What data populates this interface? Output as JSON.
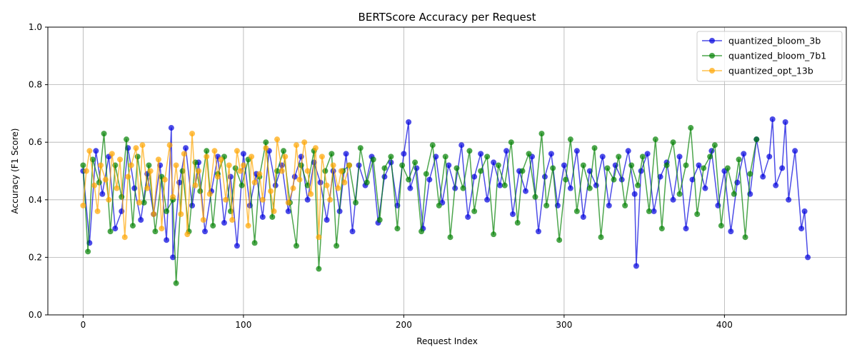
{
  "chart_data": {
    "type": "line",
    "title": "BERTScore Accuracy per Request",
    "xlabel": "Request Index",
    "ylabel": "Accuracy (F1 Score)",
    "xlim": [
      -22,
      476
    ],
    "ylim": [
      0.0,
      1.0
    ],
    "xticks": [
      0,
      100,
      200,
      300,
      400
    ],
    "yticks": [
      0.0,
      0.2,
      0.4,
      0.6,
      0.8,
      1.0
    ],
    "xtick_labels": [
      "0",
      "100",
      "200",
      "300",
      "400"
    ],
    "ytick_labels": [
      "0.0",
      "0.2",
      "0.4",
      "0.6",
      "0.8",
      "1.0"
    ],
    "grid": true,
    "legend_position": "top-right",
    "series": [
      {
        "name": "quantized_bloom_3b",
        "color": "#0000dd",
        "alpha": 0.7,
        "x": [
          0,
          4,
          8,
          12,
          16,
          20,
          24,
          28,
          32,
          36,
          40,
          44,
          48,
          52,
          55,
          56,
          60,
          64,
          68,
          72,
          76,
          80,
          84,
          88,
          92,
          96,
          100,
          104,
          108,
          112,
          116,
          120,
          124,
          128,
          132,
          136,
          140,
          144,
          148,
          152,
          156,
          160,
          164,
          168,
          172,
          176,
          180,
          184,
          188,
          192,
          196,
          200,
          203,
          204,
          208,
          212,
          216,
          220,
          224,
          228,
          232,
          236,
          240,
          244,
          248,
          252,
          256,
          260,
          264,
          268,
          272,
          276,
          280,
          284,
          288,
          292,
          296,
          300,
          304,
          308,
          312,
          316,
          320,
          324,
          328,
          332,
          336,
          340,
          344,
          345,
          348,
          352,
          356,
          360,
          364,
          368,
          372,
          376,
          380,
          384,
          388,
          392,
          396,
          400,
          404,
          408,
          412,
          416,
          420,
          424,
          428,
          430,
          432,
          436,
          438,
          440,
          444,
          448,
          450,
          452
        ],
        "y": [
          0.5,
          0.25,
          0.57,
          0.42,
          0.55,
          0.3,
          0.36,
          0.58,
          0.44,
          0.33,
          0.49,
          0.35,
          0.52,
          0.26,
          0.65,
          0.2,
          0.46,
          0.58,
          0.38,
          0.53,
          0.29,
          0.43,
          0.55,
          0.32,
          0.48,
          0.24,
          0.56,
          0.38,
          0.49,
          0.34,
          0.57,
          0.45,
          0.52,
          0.36,
          0.48,
          0.55,
          0.4,
          0.53,
          0.46,
          0.33,
          0.5,
          0.36,
          0.56,
          0.29,
          0.52,
          0.45,
          0.55,
          0.32,
          0.48,
          0.53,
          0.38,
          0.56,
          0.67,
          0.44,
          0.51,
          0.3,
          0.47,
          0.55,
          0.39,
          0.52,
          0.44,
          0.59,
          0.34,
          0.48,
          0.56,
          0.4,
          0.53,
          0.45,
          0.57,
          0.35,
          0.5,
          0.43,
          0.55,
          0.29,
          0.48,
          0.56,
          0.38,
          0.52,
          0.44,
          0.57,
          0.34,
          0.5,
          0.45,
          0.55,
          0.38,
          0.52,
          0.47,
          0.57,
          0.42,
          0.17,
          0.5,
          0.56,
          0.36,
          0.48,
          0.53,
          0.4,
          0.55,
          0.3,
          0.47,
          0.52,
          0.44,
          0.57,
          0.38,
          0.5,
          0.29,
          0.46,
          0.56,
          0.42,
          0.61,
          0.48,
          0.55,
          0.68,
          0.45,
          0.51,
          0.67,
          0.4,
          0.57,
          0.3,
          0.36,
          0.2
        ]
      },
      {
        "name": "quantized_bloom_7b1",
        "color": "#008000",
        "alpha": 0.7,
        "x": [
          0,
          3,
          6,
          10,
          13,
          17,
          20,
          24,
          27,
          31,
          34,
          38,
          41,
          45,
          49,
          52,
          56,
          58,
          62,
          66,
          70,
          73,
          77,
          81,
          84,
          88,
          92,
          95,
          99,
          103,
          107,
          110,
          114,
          118,
          121,
          125,
          129,
          133,
          136,
          140,
          144,
          147,
          151,
          155,
          158,
          162,
          166,
          170,
          173,
          177,
          181,
          185,
          188,
          192,
          196,
          199,
          203,
          207,
          211,
          214,
          218,
          222,
          226,
          229,
          233,
          237,
          241,
          244,
          248,
          252,
          256,
          259,
          263,
          267,
          271,
          274,
          278,
          282,
          286,
          289,
          293,
          297,
          301,
          304,
          308,
          312,
          316,
          319,
          323,
          327,
          331,
          334,
          338,
          342,
          346,
          349,
          353,
          357,
          361,
          364,
          368,
          372,
          376,
          379,
          383,
          387,
          391,
          394,
          398,
          402,
          406,
          409,
          413,
          416,
          420
        ],
        "y": [
          0.52,
          0.22,
          0.54,
          0.46,
          0.63,
          0.29,
          0.52,
          0.41,
          0.61,
          0.31,
          0.55,
          0.39,
          0.52,
          0.29,
          0.48,
          0.36,
          0.4,
          0.11,
          0.5,
          0.29,
          0.53,
          0.43,
          0.57,
          0.31,
          0.49,
          0.55,
          0.36,
          0.51,
          0.45,
          0.54,
          0.25,
          0.48,
          0.6,
          0.34,
          0.5,
          0.57,
          0.39,
          0.24,
          0.52,
          0.45,
          0.57,
          0.16,
          0.5,
          0.56,
          0.24,
          0.5,
          0.52,
          0.39,
          0.58,
          0.46,
          0.54,
          0.33,
          0.51,
          0.55,
          0.3,
          0.52,
          0.47,
          0.53,
          0.29,
          0.49,
          0.59,
          0.38,
          0.55,
          0.27,
          0.51,
          0.44,
          0.57,
          0.36,
          0.5,
          0.55,
          0.28,
          0.52,
          0.45,
          0.6,
          0.32,
          0.5,
          0.56,
          0.41,
          0.63,
          0.38,
          0.51,
          0.26,
          0.47,
          0.61,
          0.36,
          0.52,
          0.44,
          0.58,
          0.27,
          0.51,
          0.47,
          0.55,
          0.38,
          0.52,
          0.45,
          0.55,
          0.36,
          0.61,
          0.3,
          0.52,
          0.6,
          0.42,
          0.52,
          0.65,
          0.35,
          0.51,
          0.55,
          0.59,
          0.31,
          0.51,
          0.42,
          0.54,
          0.27,
          0.49,
          0.61
        ]
      },
      {
        "name": "quantized_opt_13b",
        "color": "#ffa500",
        "alpha": 0.7,
        "x": [
          0,
          2,
          4,
          7,
          9,
          11,
          14,
          16,
          18,
          21,
          23,
          26,
          28,
          30,
          33,
          35,
          37,
          40,
          42,
          44,
          47,
          49,
          51,
          54,
          56,
          58,
          61,
          63,
          65,
          68,
          70,
          72,
          75,
          77,
          79,
          82,
          84,
          86,
          89,
          91,
          93,
          96,
          98,
          100,
          103,
          105,
          107,
          110,
          112,
          114,
          117,
          119,
          121,
          124,
          126,
          128,
          131,
          133,
          135,
          138,
          140,
          142,
          145,
          147,
          149,
          152,
          154,
          156,
          159,
          161,
          163,
          166
        ],
        "y": [
          0.38,
          0.5,
          0.57,
          0.45,
          0.36,
          0.52,
          0.47,
          0.4,
          0.56,
          0.44,
          0.54,
          0.27,
          0.48,
          0.52,
          0.58,
          0.39,
          0.59,
          0.44,
          0.5,
          0.35,
          0.54,
          0.3,
          0.47,
          0.59,
          0.41,
          0.52,
          0.35,
          0.56,
          0.28,
          0.63,
          0.45,
          0.5,
          0.33,
          0.55,
          0.42,
          0.57,
          0.48,
          0.54,
          0.4,
          0.52,
          0.33,
          0.57,
          0.5,
          0.52,
          0.31,
          0.55,
          0.46,
          0.49,
          0.4,
          0.58,
          0.43,
          0.36,
          0.61,
          0.5,
          0.55,
          0.39,
          0.44,
          0.59,
          0.47,
          0.6,
          0.5,
          0.42,
          0.58,
          0.27,
          0.55,
          0.45,
          0.4,
          0.52,
          0.44,
          0.5,
          0.46,
          0.52
        ]
      }
    ]
  }
}
